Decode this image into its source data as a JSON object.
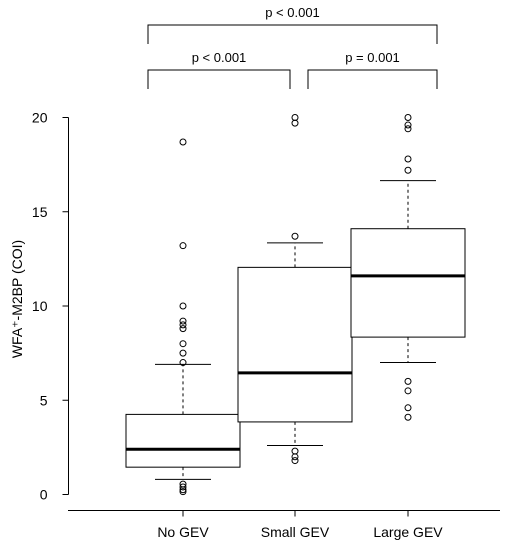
{
  "chart_data": {
    "type": "box",
    "ylabel": "WFA⁺-M2BP (COI)",
    "xlabel": "",
    "ylim": [
      0,
      20
    ],
    "yticks": [
      "0",
      "5",
      "10",
      "15",
      "20"
    ],
    "categories": [
      "No GEV",
      "Small GEV",
      "Large GEV"
    ],
    "boxes": [
      {
        "name": "No GEV",
        "whisker_low": 0.8,
        "q1": 1.45,
        "median": 2.4,
        "q3": 4.25,
        "whisker_high": 6.9,
        "outliers": [
          0.15,
          0.25,
          0.4,
          0.55,
          7.0,
          7.5,
          8.0,
          8.8,
          9.0,
          9.2,
          10.0,
          13.2,
          18.7
        ]
      },
      {
        "name": "Small GEV",
        "whisker_low": 2.6,
        "q1": 3.85,
        "median": 6.45,
        "q3": 12.05,
        "whisker_high": 13.35,
        "outliers": [
          1.8,
          2.0,
          2.3,
          13.7,
          19.7,
          20.0
        ]
      },
      {
        "name": "Large GEV",
        "whisker_low": 7.0,
        "q1": 8.35,
        "median": 11.6,
        "q3": 14.1,
        "whisker_high": 16.65,
        "outliers": [
          4.1,
          4.6,
          5.5,
          6.0,
          17.2,
          17.8,
          19.4,
          19.6,
          20.0
        ]
      }
    ],
    "comparisons": [
      {
        "from": "No GEV",
        "to": "Large GEV",
        "label": "p < 0.001"
      },
      {
        "from": "No GEV",
        "to": "Small GEV",
        "label": "p < 0.001"
      },
      {
        "from": "Small GEV",
        "to": "Large GEV",
        "label": "p = 0.001"
      }
    ]
  }
}
